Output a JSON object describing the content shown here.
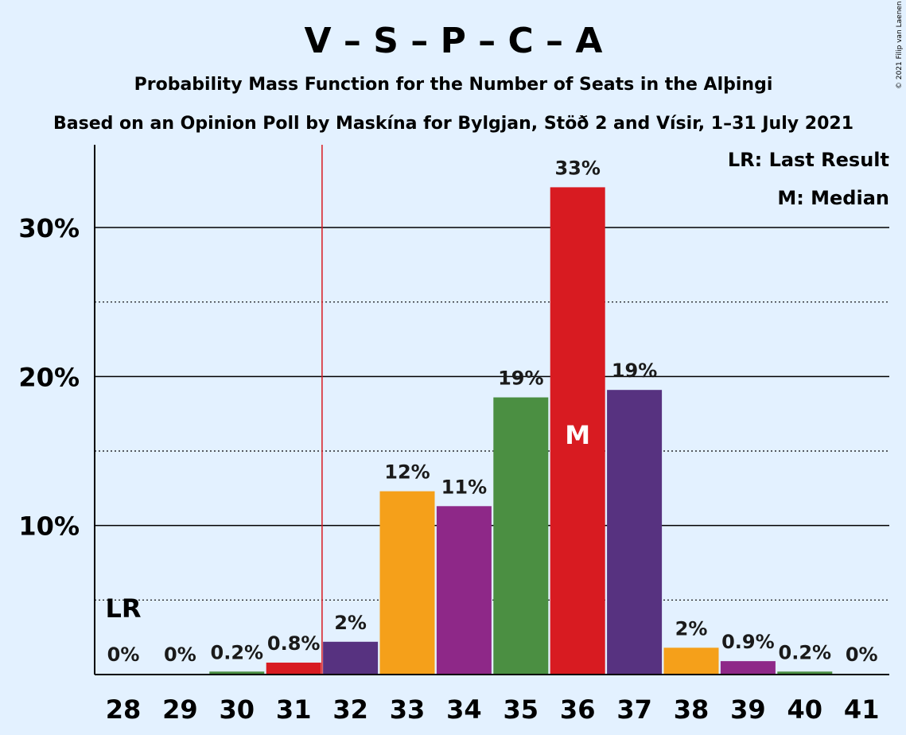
{
  "chart_data": {
    "type": "bar",
    "title": "V – S – P – C – A",
    "subtitle_1": "Probability Mass Function for the Number of Seats in the Alþingi",
    "subtitle_2": "Based on an Opinion Poll by Maskína for Bylgjan, Stöð 2 and Vísir, 1–31 July 2021",
    "copyright": "© 2021 Filip van Laenen",
    "categories": [
      "28",
      "29",
      "30",
      "31",
      "32",
      "33",
      "34",
      "35",
      "36",
      "37",
      "38",
      "39",
      "40",
      "41"
    ],
    "values": [
      0,
      0,
      0.2,
      0.8,
      2.2,
      12.3,
      11.3,
      18.6,
      32.7,
      19.1,
      1.8,
      0.9,
      0.2,
      0
    ],
    "bar_labels": [
      "0%",
      "0%",
      "0.2%",
      "0.8%",
      "2%",
      "12%",
      "11%",
      "19%",
      "33%",
      "19%",
      "2%",
      "0.9%",
      "0.2%",
      "0%"
    ],
    "bar_colors": [
      "#f5a01a",
      "#8e2888",
      "#4b8f42",
      "#d81b21",
      "#573280",
      "#f5a01a",
      "#8e2888",
      "#4b8f42",
      "#d81b21",
      "#573280",
      "#f5a01a",
      "#8e2888",
      "#4b8f42",
      "#d81b21"
    ],
    "ylim": [
      0,
      35
    ],
    "y_ticks_major": [
      10,
      20,
      30
    ],
    "y_tick_labels": [
      "10%",
      "20%",
      "30%"
    ],
    "y_ticks_minor": [
      5,
      15,
      25
    ],
    "last_result_seat": "31.5",
    "last_result_label": "LR",
    "median_seat": "36",
    "median_label": "M",
    "legend": [
      "LR: Last Result",
      "M: Median"
    ],
    "legend_position": "top-right",
    "grid": true
  },
  "colors": {
    "background": "#e3f1ff",
    "lr_line": "#d81b21"
  }
}
